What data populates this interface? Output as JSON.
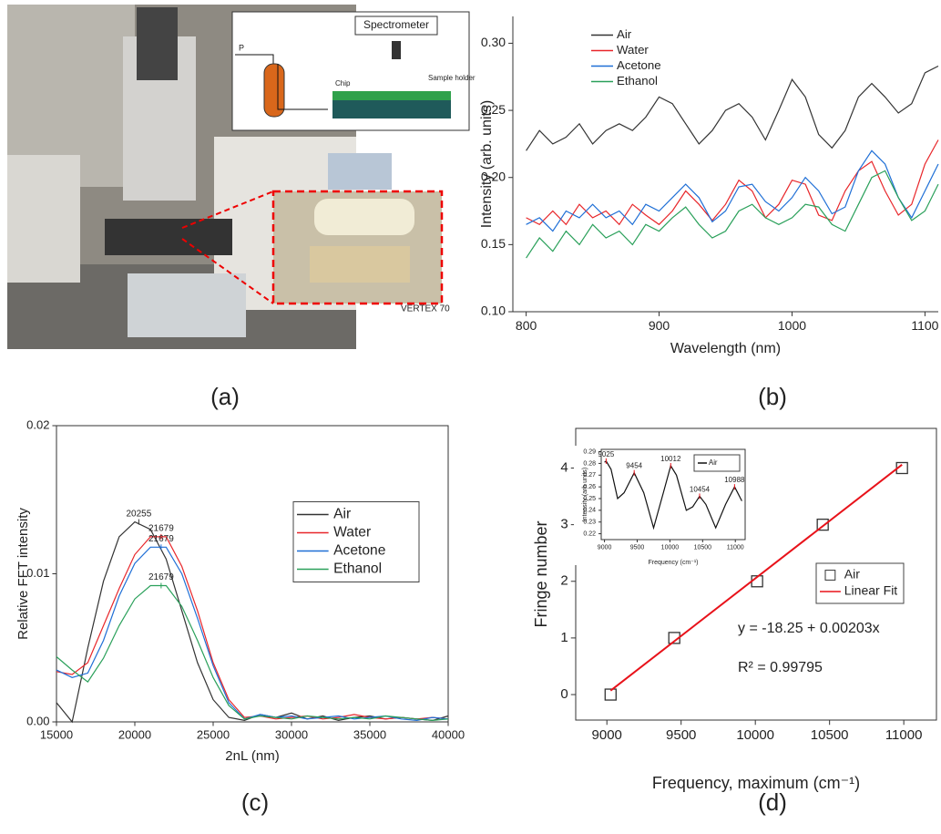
{
  "figure": {
    "panel_labels": [
      "(a)",
      "(b)",
      "(c)",
      "(d)"
    ],
    "photo": {
      "schematic_title": "Spectrometer",
      "inlet_label": "P",
      "chip_label": "Chip",
      "holder_label": "Sample holder",
      "instrument_label": "VERTEX 70"
    }
  },
  "chart_data": [
    {
      "type": "line",
      "x_label": "Wavelength (nm)",
      "y_label": "Intensity (arb. units)",
      "x": [
        800,
        810,
        820,
        830,
        840,
        850,
        860,
        870,
        880,
        890,
        900,
        910,
        920,
        930,
        940,
        950,
        960,
        970,
        980,
        990,
        1000,
        1010,
        1020,
        1030,
        1040,
        1050,
        1060,
        1070,
        1080,
        1090,
        1100,
        1110
      ],
      "series": [
        {
          "name": "Air",
          "color": "#333333",
          "values": [
            0.22,
            0.235,
            0.225,
            0.23,
            0.24,
            0.225,
            0.235,
            0.24,
            0.235,
            0.245,
            0.26,
            0.255,
            0.24,
            0.225,
            0.235,
            0.25,
            0.255,
            0.245,
            0.228,
            0.25,
            0.273,
            0.26,
            0.232,
            0.222,
            0.235,
            0.26,
            0.27,
            0.26,
            0.248,
            0.255,
            0.278,
            0.283
          ]
        },
        {
          "name": "Water",
          "color": "#e8262a",
          "values": [
            0.17,
            0.165,
            0.175,
            0.165,
            0.18,
            0.17,
            0.175,
            0.165,
            0.18,
            0.172,
            0.165,
            0.175,
            0.19,
            0.18,
            0.168,
            0.18,
            0.198,
            0.19,
            0.17,
            0.18,
            0.198,
            0.195,
            0.172,
            0.168,
            0.19,
            0.205,
            0.212,
            0.19,
            0.172,
            0.18,
            0.21,
            0.228
          ]
        },
        {
          "name": "Acetone",
          "color": "#1f6fd6",
          "values": [
            0.165,
            0.17,
            0.16,
            0.175,
            0.17,
            0.18,
            0.17,
            0.175,
            0.165,
            0.18,
            0.175,
            0.185,
            0.195,
            0.185,
            0.167,
            0.175,
            0.193,
            0.195,
            0.182,
            0.175,
            0.185,
            0.2,
            0.19,
            0.173,
            0.178,
            0.205,
            0.22,
            0.21,
            0.185,
            0.17,
            0.19,
            0.21
          ]
        },
        {
          "name": "Ethanol",
          "color": "#2aa05a",
          "values": [
            0.14,
            0.155,
            0.145,
            0.16,
            0.15,
            0.165,
            0.155,
            0.16,
            0.15,
            0.165,
            0.16,
            0.17,
            0.178,
            0.165,
            0.155,
            0.16,
            0.175,
            0.18,
            0.17,
            0.165,
            0.17,
            0.18,
            0.178,
            0.165,
            0.16,
            0.18,
            0.2,
            0.205,
            0.185,
            0.168,
            0.175,
            0.195
          ]
        }
      ],
      "xlim": [
        790,
        1110
      ],
      "ylim": [
        0.1,
        0.32
      ],
      "xticks": [
        800,
        900,
        1000,
        1100
      ],
      "yticks": [
        {
          "value": 0.1,
          "label": "0.10"
        },
        0.15,
        {
          "value": 0.2,
          "label": "0.20"
        },
        0.25,
        {
          "value": 0.3,
          "label": "0.30"
        }
      ],
      "legend": "upper left"
    },
    {
      "type": "line",
      "x_label": "2nL (nm)",
      "y_label": "Relative FFT intensity",
      "x": [
        15000,
        16000,
        17000,
        18000,
        19000,
        20000,
        21000,
        22000,
        23000,
        24000,
        25000,
        26000,
        27000,
        28000,
        29000,
        30000,
        31000,
        32000,
        33000,
        34000,
        35000,
        36000,
        37000,
        38000,
        39000,
        40000
      ],
      "series": [
        {
          "name": "Air",
          "color": "#333333",
          "values": [
            0.0013,
            0.0,
            0.005,
            0.0095,
            0.0125,
            0.0135,
            0.013,
            0.011,
            0.0075,
            0.004,
            0.0015,
            0.0003,
            0.0001,
            0.0005,
            0.0003,
            0.0006,
            0.0002,
            0.0004,
            0.0001,
            0.0003,
            0.0004,
            0.0002,
            0.0003,
            0.0002,
            0.0001,
            0.0004
          ]
        },
        {
          "name": "Water",
          "color": "#e8262a",
          "values": [
            0.0034,
            0.0032,
            0.004,
            0.0065,
            0.009,
            0.0113,
            0.0125,
            0.0125,
            0.0105,
            0.0075,
            0.004,
            0.0015,
            0.0003,
            0.0004,
            0.0002,
            0.0003,
            0.0004,
            0.0002,
            0.0003,
            0.0005,
            0.0003,
            0.0002,
            0.0003,
            0.0002,
            0.0003,
            0.0002
          ]
        },
        {
          "name": "Acetone",
          "color": "#1f6fd6",
          "values": [
            0.0035,
            0.003,
            0.0033,
            0.0055,
            0.0085,
            0.0107,
            0.0118,
            0.0118,
            0.01,
            0.007,
            0.0038,
            0.0013,
            0.0002,
            0.0005,
            0.0003,
            0.0004,
            0.0002,
            0.0003,
            0.0004,
            0.0002,
            0.0003,
            0.0004,
            0.0002,
            0.0001,
            0.0003,
            0.0002
          ]
        },
        {
          "name": "Ethanol",
          "color": "#2aa05a",
          "values": [
            0.0044,
            0.0035,
            0.0027,
            0.0043,
            0.0065,
            0.0083,
            0.0092,
            0.0092,
            0.0078,
            0.0055,
            0.003,
            0.0011,
            0.0002,
            0.0004,
            0.0003,
            0.0002,
            0.0004,
            0.0003,
            0.0002,
            0.0003,
            0.0002,
            0.0004,
            0.0003,
            0.0002,
            0.0001,
            0.0002
          ]
        }
      ],
      "annotations": [
        {
          "text": "20255",
          "x": 20255,
          "y": 0.0135,
          "color": "#333333"
        },
        {
          "text": "21679",
          "x": 21679,
          "y": 0.0125,
          "color": "#e8262a"
        },
        {
          "text": "21679",
          "x": 21679,
          "y": 0.0118,
          "color": "#1f6fd6"
        },
        {
          "text": "21679",
          "x": 21679,
          "y": 0.0092,
          "color": "#2aa05a"
        }
      ],
      "xlim": [
        15000,
        40000
      ],
      "ylim": [
        0,
        0.02
      ],
      "xticks": [
        15000,
        20000,
        25000,
        30000,
        35000,
        40000
      ],
      "yticks": [
        {
          "value": 0,
          "label": "0.00"
        },
        0.01,
        0.02
      ],
      "legend": "center right"
    },
    {
      "type": "scatter",
      "x_label": "Frequency, maximum (cm⁻¹)",
      "y_label": "Fringe number",
      "series": [
        {
          "name": "Air",
          "type": "scatter",
          "color": "#333333",
          "x": [
            9025,
            9454,
            10012,
            10454,
            10988
          ],
          "values": [
            0,
            1,
            2,
            3,
            4
          ]
        },
        {
          "name": "Linear Fit",
          "type": "line",
          "color": "#e8121a",
          "x": [
            9025,
            10988
          ],
          "values": [
            0.07,
            4.06
          ]
        }
      ],
      "equation": "y = -18.25 + 0.00203x",
      "r_squared": "R² = 0.99795",
      "xlim": [
        8790,
        11220
      ],
      "ylim": [
        -0.45,
        4.7
      ],
      "xticks": [
        9000,
        9500,
        10000,
        10500,
        11000
      ],
      "yticks": [
        0,
        1,
        2,
        3,
        4
      ],
      "legend": "center right"
    },
    {
      "type": "line",
      "x_label": "Frequency (cm⁻¹)",
      "y_label": "Intensity (arb units)",
      "x": [
        9000,
        9025,
        9100,
        9200,
        9300,
        9454,
        9600,
        9750,
        9900,
        10012,
        10100,
        10250,
        10350,
        10454,
        10550,
        10700,
        10850,
        10988,
        11100
      ],
      "series": [
        {
          "name": "Air",
          "color": "#111111",
          "values": [
            0.281,
            0.282,
            0.275,
            0.25,
            0.255,
            0.272,
            0.255,
            0.225,
            0.255,
            0.278,
            0.27,
            0.24,
            0.243,
            0.252,
            0.245,
            0.225,
            0.245,
            0.26,
            0.248
          ]
        }
      ],
      "annotations": [
        {
          "text": "9025",
          "x": 9025,
          "y": 0.282,
          "color": "#e8121a"
        },
        {
          "text": "9454",
          "x": 9454,
          "y": 0.272,
          "color": "#e8121a"
        },
        {
          "text": "10012",
          "x": 10012,
          "y": 0.278,
          "color": "#e8121a"
        },
        {
          "text": "10454",
          "x": 10454,
          "y": 0.252,
          "color": "#e8121a"
        },
        {
          "text": "10988",
          "x": 10988,
          "y": 0.26,
          "color": "#e8121a"
        }
      ],
      "xlim": [
        8950,
        11150
      ],
      "ylim": [
        0.215,
        0.292
      ],
      "xticks": [
        9000,
        9500,
        10000,
        10500,
        11000
      ],
      "yticks": [
        0.22,
        0.23,
        0.24,
        0.25,
        0.26,
        0.27,
        0.28,
        0.29
      ],
      "legend": "upper right"
    }
  ]
}
